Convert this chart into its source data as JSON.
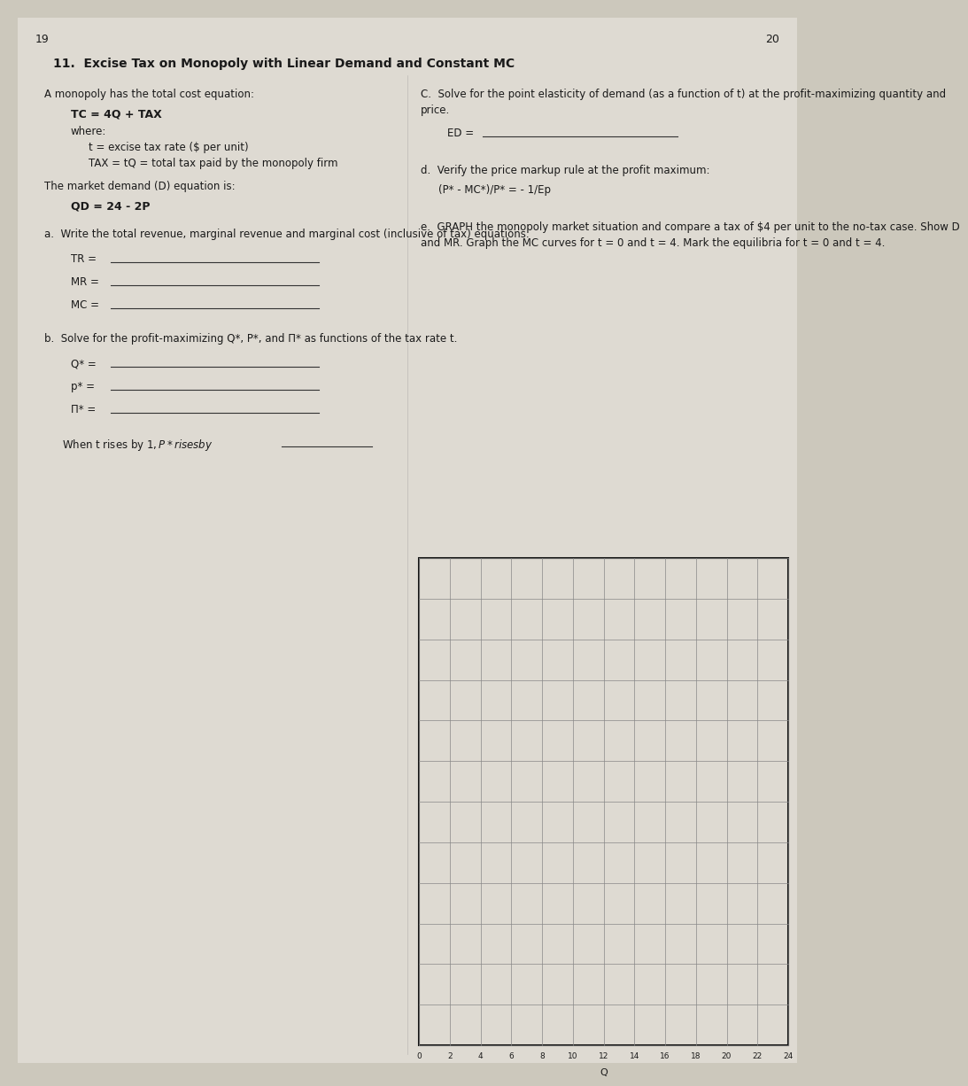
{
  "page_number_left": "19",
  "page_number_right": "20",
  "title": "11.  Excise Tax on Monopoly with Linear Demand and Constant MC",
  "bg_color": "#ccc8bc",
  "paper_color": "#dedad2",
  "text_color": "#1a1a1a",
  "left_col": {
    "tc_label": "A monopoly has the total cost equation:",
    "tc_eq": "TC = 4Q + TAX",
    "where": "where:",
    "t_def": "t = excise tax rate ($ per unit)",
    "tax_def": "TAX = tQ = total tax paid by the monopoly firm",
    "demand_label": "The market demand (D) equation is:",
    "demand_eq": "QD = 24 - 2P",
    "part_a_label": "a.  Write the total revenue, marginal revenue and marginal cost (inclusive of tax) equations.",
    "TR_label": "TR =",
    "MR_label": "MR =",
    "MC_label": "MC =",
    "part_b_label": "b.  Solve for the profit-maximizing Q*, P*, and Π* as functions of the tax rate t.",
    "Q_label": "Q* =",
    "P_label": "p* =",
    "Pi_label": "Π*",
    "when_t": "When t rises by $1, P* rises by $"
  },
  "right_col": {
    "part_c_label_1": "C.  Solve for the point elasticity of demand (as a function of t) at the profit-maximizing quantity and",
    "part_c_label_2": "price.",
    "ED_label": "ED =",
    "part_d_label": "d.  Verify the price markup rule at the profit maximum:",
    "markup_rule": "(P* - MC*)/P* = - 1/Ep",
    "part_e_label_1": "e.  GRAPH the monopoly market situation and compare a tax of $4 per unit to the no-tax case. Show D",
    "part_e_label_2": "and MR. Graph the MC curves for t = 0 and t = 4. Mark the equilibria for t = 0 and t = 4.",
    "graph_xticks": [
      0,
      2,
      4,
      6,
      8,
      10,
      12,
      14,
      16,
      18,
      20,
      22,
      24
    ],
    "graph_x_label": "Q"
  }
}
